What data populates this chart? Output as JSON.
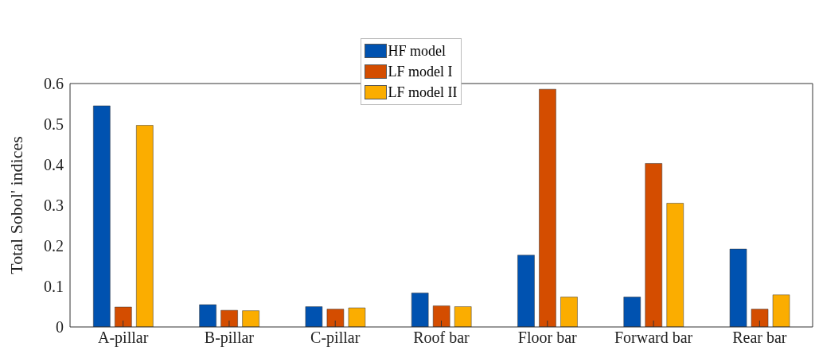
{
  "chart_data": {
    "type": "bar",
    "ylabel": "Total Sobol' indices",
    "categories": [
      "A-pillar",
      "B-pillar",
      "C-pillar",
      "Roof bar",
      "Floor bar",
      "Forward bar",
      "Rear bar"
    ],
    "series": [
      {
        "name": "HF model",
        "color": "#0052b0",
        "values": [
          0.545,
          0.055,
          0.05,
          0.084,
          0.177,
          0.074,
          0.192
        ]
      },
      {
        "name": "LF model I",
        "color": "#d44d00",
        "values": [
          0.049,
          0.041,
          0.044,
          0.052,
          0.586,
          0.403,
          0.044
        ]
      },
      {
        "name": "LF model II",
        "color": "#fbad00",
        "values": [
          0.497,
          0.04,
          0.047,
          0.05,
          0.074,
          0.305,
          0.079
        ]
      }
    ],
    "ylim": [
      0,
      0.6
    ],
    "yticks": [
      0,
      0.1,
      0.2,
      0.3,
      0.4,
      0.5,
      0.6
    ],
    "grid": false,
    "legend": "top"
  }
}
